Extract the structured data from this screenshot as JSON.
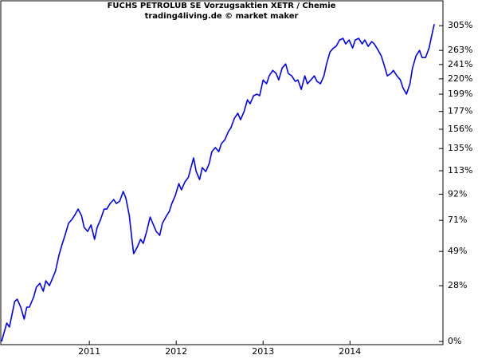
{
  "chart_data": {
    "type": "line",
    "title": "FUCHS PETROLUB SE Vorzugsaktien XETR / Chemie",
    "subtitle": "trading4living.de © market maker",
    "color": "#0000ff",
    "log_scale": true,
    "xlim": [
      2009.99,
      2015.07
    ],
    "xticks": [
      2011,
      2012,
      2013,
      2014
    ],
    "ylim": [
      -1.4,
      338
    ],
    "yticks": [
      {
        "value": 305,
        "label": "305%"
      },
      {
        "value": 263,
        "label": "263%"
      },
      {
        "value": 241,
        "label": "241%"
      },
      {
        "value": 220,
        "label": "220%"
      },
      {
        "value": 199,
        "label": "199%"
      },
      {
        "value": 177,
        "label": "177%"
      },
      {
        "value": 156,
        "label": "156%"
      },
      {
        "value": 135,
        "label": "135%"
      },
      {
        "value": 113,
        "label": "113%"
      },
      {
        "value": 92,
        "label": "92%"
      },
      {
        "value": 71,
        "label": "71%"
      },
      {
        "value": 49,
        "label": "49%"
      },
      {
        "value": 28,
        "label": "28%"
      },
      {
        "value": 0,
        "label": "0%"
      }
    ],
    "x": [
      2009.99,
      2010.05,
      2010.08,
      2010.14,
      2010.17,
      2010.21,
      2010.25,
      2010.28,
      2010.31,
      2010.36,
      2010.39,
      2010.43,
      2010.47,
      2010.5,
      2010.54,
      2010.58,
      2010.61,
      2010.65,
      2010.69,
      2010.72,
      2010.76,
      2010.8,
      2010.83,
      2010.87,
      2010.91,
      2010.94,
      2010.98,
      2011.02,
      2011.06,
      2011.09,
      2011.13,
      2011.17,
      2011.2,
      2011.24,
      2011.28,
      2011.31,
      2011.35,
      2011.39,
      2011.42,
      2011.46,
      2011.49,
      2011.51,
      2011.55,
      2011.59,
      2011.62,
      2011.66,
      2011.7,
      2011.73,
      2011.77,
      2011.81,
      2011.84,
      2011.88,
      2011.92,
      2011.95,
      2011.99,
      2012.03,
      2012.06,
      2012.1,
      2012.14,
      2012.17,
      2012.2,
      2012.23,
      2012.27,
      2012.3,
      2012.34,
      2012.38,
      2012.41,
      2012.45,
      2012.49,
      2012.52,
      2012.56,
      2012.6,
      2012.63,
      2012.67,
      2012.71,
      2012.74,
      2012.78,
      2012.82,
      2012.85,
      2012.89,
      2012.93,
      2012.96,
      2013.0,
      2013.04,
      2013.07,
      2013.11,
      2013.15,
      2013.18,
      2013.22,
      2013.26,
      2013.29,
      2013.33,
      2013.37,
      2013.4,
      2013.44,
      2013.48,
      2013.51,
      2013.55,
      2013.59,
      2013.62,
      2013.66,
      2013.7,
      2013.73,
      2013.77,
      2013.81,
      2013.84,
      2013.88,
      2013.92,
      2013.95,
      2013.99,
      2014.03,
      2014.06,
      2014.1,
      2014.14,
      2014.17,
      2014.21,
      2014.25,
      2014.28,
      2014.32,
      2014.36,
      2014.39,
      2014.43,
      2014.47,
      2014.5,
      2014.54,
      2014.58,
      2014.61,
      2014.65,
      2014.69,
      2014.72,
      2014.76,
      2014.8,
      2014.83,
      2014.87,
      2014.91,
      2014.94,
      2014.97
    ],
    "values": [
      0,
      8.5,
      6.6,
      19.3,
      20.6,
      16.4,
      10.4,
      16.4,
      16.4,
      21.9,
      27.1,
      29.4,
      24.9,
      30.8,
      28.0,
      32.7,
      36.5,
      46.5,
      54.4,
      60.0,
      68.7,
      71.7,
      74.7,
      79.7,
      74.7,
      65.8,
      62.8,
      67.5,
      57.2,
      65.8,
      71.7,
      79.7,
      79.7,
      84.2,
      87.5,
      84.2,
      86.2,
      94.3,
      88.9,
      74.7,
      57.2,
      47.5,
      51.7,
      57.2,
      54.4,
      62.8,
      73.5,
      68.7,
      62.8,
      60.0,
      68.7,
      73.5,
      77.8,
      84.2,
      90.9,
      101.2,
      95.6,
      102.7,
      107,
      116,
      125.4,
      112.2,
      104.9,
      116,
      112.2,
      119.8,
      131.8,
      136,
      131.8,
      140.1,
      144.4,
      153.2,
      157.7,
      168.9,
      174.7,
      167,
      176.6,
      191.6,
      186.5,
      196.9,
      199,
      196.9,
      218.5,
      213.1,
      224.2,
      232.3,
      227.7,
      218.5,
      235.8,
      241.8,
      227.7,
      224.2,
      216.4,
      218.5,
      205.3,
      224.2,
      213.1,
      218.5,
      224.2,
      216.4,
      213.1,
      224.2,
      241.8,
      260.4,
      266.8,
      269.5,
      280.1,
      282.8,
      273.5,
      280.1,
      266.8,
      280.1,
      282.8,
      273.5,
      280.1,
      269.5,
      277.4,
      273.5,
      264.2,
      254.2,
      241.8,
      224.2,
      227.7,
      232.3,
      224.2,
      218.5,
      207.5,
      199,
      213.1,
      235.8,
      254.2,
      263,
      251.7,
      251.7,
      266.8,
      286.9,
      307.8
    ]
  }
}
